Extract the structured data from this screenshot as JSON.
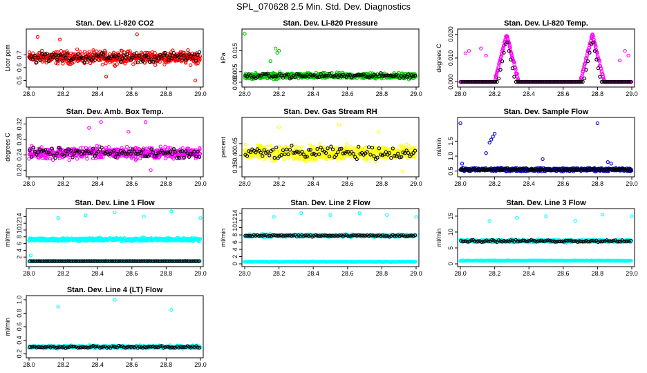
{
  "page_title": "SPL_070628  2.5 Min. Std. Dev. Diagnostics",
  "chart_data": [
    {
      "id": "co2",
      "type": "scatter",
      "title": "Stan. Dev. Li-820 CO2",
      "ylabel": "Licor ppm",
      "xlim": [
        28.0,
        29.0
      ],
      "ylim": [
        0.47,
        0.88
      ],
      "xticks": [
        28.0,
        28.2,
        28.4,
        28.6,
        28.8,
        29.0
      ],
      "xtick_labels": [
        "28.0",
        "28.2",
        "28.4",
        "28.6",
        "28.8",
        "29.0"
      ],
      "yticks": [
        0.5,
        0.6,
        0.7
      ],
      "ytick_labels": [
        "0.5",
        "0.6",
        "0.7"
      ],
      "main_color": "#ff0000",
      "base": 0.68,
      "spread": 0.07,
      "outliers": [
        [
          28.05,
          0.84
        ],
        [
          28.18,
          0.82
        ],
        [
          28.63,
          0.86
        ],
        [
          28.97,
          0.5
        ],
        [
          28.45,
          0.53
        ]
      ]
    },
    {
      "id": "pressure",
      "type": "scatter",
      "title": "Stan. Dev. Li-820 Pressure",
      "ylabel": "kPa",
      "xlim": [
        28.0,
        29.0
      ],
      "ylim": [
        -0.001,
        0.024
      ],
      "xticks": [
        28.0,
        28.2,
        28.4,
        28.6,
        28.8,
        29.0
      ],
      "xtick_labels": [
        "28.0",
        "28.2",
        "28.4",
        "28.6",
        "28.8",
        "29.0"
      ],
      "yticks": [
        0.0,
        0.005,
        0.015
      ],
      "ytick_labels": [
        "0.000",
        "0.005",
        "0.015"
      ],
      "main_color": "#00c800",
      "base": 0.003,
      "spread": 0.002,
      "outliers": [
        [
          28.0,
          0.023
        ],
        [
          28.18,
          0.016
        ],
        [
          28.19,
          0.014
        ],
        [
          28.2,
          0.015
        ],
        [
          28.15,
          0.01
        ]
      ]
    },
    {
      "id": "temp",
      "type": "scatter",
      "title": "Stan. Dev. Li-820 Temp.",
      "ylabel": "degrees C",
      "xlim": [
        28.0,
        29.0
      ],
      "ylim": [
        -0.001,
        0.021
      ],
      "xticks": [
        28.0,
        28.2,
        28.4,
        28.6,
        28.8,
        29.0
      ],
      "xtick_labels": [
        "28.0",
        "28.2",
        "28.4",
        "28.6",
        "28.8",
        "29.0"
      ],
      "yticks": [
        0.0,
        0.01,
        0.02
      ],
      "ytick_labels": [
        "0.000",
        "0.010",
        "0.020"
      ],
      "main_color": "#ff00ff",
      "base": 0.0,
      "spread": 0.0,
      "peaks": [
        [
          28.27,
          0.02
        ],
        [
          28.77,
          0.02
        ]
      ],
      "outliers": [
        [
          28.03,
          0.012
        ],
        [
          28.05,
          0.013
        ],
        [
          28.12,
          0.014
        ],
        [
          28.15,
          0.011
        ],
        [
          28.96,
          0.013
        ],
        [
          28.98,
          0.011
        ],
        [
          28.93,
          0.009
        ]
      ]
    },
    {
      "id": "ambbox",
      "type": "scatter",
      "title": "Stan. Dev. Amb. Box Temp.",
      "ylabel": "degrees C",
      "xlim": [
        28.0,
        29.0
      ],
      "ylim": [
        0.19,
        0.33
      ],
      "xticks": [
        28.0,
        28.2,
        28.4,
        28.6,
        28.8,
        29.0
      ],
      "xtick_labels": [
        "28.0",
        "28.2",
        "28.4",
        "28.6",
        "28.8",
        "29.0"
      ],
      "yticks": [
        0.2,
        0.24,
        0.28,
        0.32
      ],
      "ytick_labels": [
        "0.20",
        "0.24",
        "0.28",
        "0.32"
      ],
      "main_color": "#ff00ff",
      "base": 0.245,
      "spread": 0.022,
      "outliers": [
        [
          28.42,
          0.325
        ],
        [
          28.68,
          0.325
        ],
        [
          28.35,
          0.31
        ],
        [
          28.58,
          0.3
        ],
        [
          28.71,
          0.2
        ]
      ]
    },
    {
      "id": "rh",
      "type": "scatter",
      "title": "Stan. Dev. Gas Stream RH",
      "ylabel": "percent",
      "xlim": [
        28.0,
        29.0
      ],
      "ylim": [
        0.32,
        0.55
      ],
      "xticks": [
        28.0,
        28.2,
        28.4,
        28.6,
        28.8,
        29.0
      ],
      "xtick_labels": [
        "28.0",
        "28.2",
        "28.4",
        "28.6",
        "28.8",
        "29.0"
      ],
      "yticks": [
        0.35,
        0.4,
        0.45
      ],
      "ytick_labels": [
        "0.35",
        "0.40",
        "0.45"
      ],
      "main_color": "#ffff00",
      "base": 0.41,
      "spread": 0.045,
      "outliers": [
        [
          28.2,
          0.52
        ],
        [
          28.55,
          0.53
        ],
        [
          28.78,
          0.5
        ],
        [
          28.92,
          0.33
        ]
      ]
    },
    {
      "id": "sampleflow",
      "type": "scatter",
      "title": "Stan. Dev. Sample Flow",
      "ylabel": "ml/min",
      "xlim": [
        28.0,
        29.0
      ],
      "ylim": [
        0.4,
        2.2
      ],
      "xticks": [
        28.0,
        28.2,
        28.4,
        28.6,
        28.8,
        29.0
      ],
      "xtick_labels": [
        "28.0",
        "28.2",
        "28.4",
        "28.6",
        "28.8",
        "29.0"
      ],
      "yticks": [
        0.5,
        1.0,
        1.5
      ],
      "ytick_labels": [
        "0.5",
        "1.0",
        "1.5"
      ],
      "main_color": "#0000c8",
      "base": 0.55,
      "spread": 0.08,
      "outliers": [
        [
          28.0,
          2.1
        ],
        [
          28.01,
          0.75
        ],
        [
          28.15,
          1.1
        ],
        [
          28.17,
          1.45
        ],
        [
          28.18,
          1.55
        ],
        [
          28.2,
          1.75
        ],
        [
          28.19,
          1.65
        ],
        [
          28.8,
          2.1
        ],
        [
          28.48,
          0.9
        ],
        [
          28.86,
          0.8
        ],
        [
          28.88,
          0.75
        ]
      ]
    },
    {
      "id": "line1",
      "type": "scatter",
      "title": "Stan. Dev. Line 1 Flow",
      "ylabel": "ml/min",
      "xlim": [
        28.0,
        29.0
      ],
      "ylim": [
        0,
        15.5
      ],
      "xticks": [
        28.0,
        28.2,
        28.4,
        28.6,
        28.8,
        29.0
      ],
      "xtick_labels": [
        "28.0",
        "28.2",
        "28.4",
        "28.6",
        "28.8",
        "29.0"
      ],
      "yticks": [
        2,
        4,
        6,
        8,
        10,
        12,
        14
      ],
      "ytick_labels": [
        "2",
        "4",
        "6",
        "8",
        "10",
        "12",
        "14"
      ],
      "main_color": "#00ffff",
      "base": 7.2,
      "spread": 0.7,
      "low_band": 0.8,
      "outliers": [
        [
          28.17,
          13.5
        ],
        [
          28.33,
          14.3
        ],
        [
          28.5,
          15.2
        ],
        [
          28.67,
          14
        ],
        [
          28.83,
          15.5
        ],
        [
          29.0,
          13.5
        ],
        [
          28.01,
          2.5
        ]
      ]
    },
    {
      "id": "line2",
      "type": "scatter",
      "title": "Stan. Dev. Line 2 Flow",
      "ylabel": "ml/min",
      "xlim": [
        28.0,
        29.0
      ],
      "ylim": [
        0,
        14.5
      ],
      "xticks": [
        28.0,
        28.2,
        28.4,
        28.6,
        28.8,
        29.0
      ],
      "xtick_labels": [
        "28.0",
        "28.2",
        "28.4",
        "28.6",
        "28.8",
        "29.0"
      ],
      "yticks": [
        0,
        2,
        4,
        6,
        8,
        10,
        12,
        14
      ],
      "ytick_labels": [
        "0",
        "2",
        "4",
        "6",
        "8",
        "10",
        "12",
        "14"
      ],
      "main_color": "#00ffff",
      "base": 7.8,
      "spread": 0.5,
      "low_band": 0.6,
      "outliers": [
        [
          28.17,
          13
        ],
        [
          28.33,
          14
        ],
        [
          28.5,
          13.5
        ],
        [
          28.67,
          14
        ],
        [
          28.83,
          13.5
        ],
        [
          29.0,
          13
        ]
      ]
    },
    {
      "id": "line3",
      "type": "scatter",
      "title": "Stan. Dev. Line 3 Flow",
      "ylabel": "ml/min",
      "xlim": [
        28.0,
        29.0
      ],
      "ylim": [
        0,
        16.5
      ],
      "xticks": [
        28.0,
        28.2,
        28.4,
        28.6,
        28.8,
        29.0
      ],
      "xtick_labels": [
        "28.0",
        "28.2",
        "28.4",
        "28.6",
        "28.8",
        "29.0"
      ],
      "yticks": [
        0,
        5,
        10,
        15
      ],
      "ytick_labels": [
        "0",
        "5",
        "10",
        "15"
      ],
      "main_color": "#00ffff",
      "base": 7.2,
      "spread": 0.6,
      "low_band": 1.0,
      "outliers": [
        [
          28.17,
          13.5
        ],
        [
          28.33,
          14.5
        ],
        [
          28.5,
          15
        ],
        [
          28.67,
          13.5
        ],
        [
          28.83,
          15.5
        ],
        [
          29.0,
          15
        ]
      ]
    },
    {
      "id": "line4",
      "type": "scatter",
      "title": "Stan. Dev. Line 4 (LT) Flow",
      "ylabel": "ml/min",
      "xlim": [
        28.0,
        29.0
      ],
      "ylim": [
        0.18,
        1.02
      ],
      "xticks": [
        28.0,
        28.2,
        28.4,
        28.6,
        28.8,
        29.0
      ],
      "xtick_labels": [
        "28.0",
        "28.2",
        "28.4",
        "28.6",
        "28.8",
        "29.0"
      ],
      "yticks": [
        0.2,
        0.4,
        0.6,
        0.8,
        1.0
      ],
      "ytick_labels": [
        "0.2",
        "0.4",
        "0.6",
        "0.8",
        "1.0"
      ],
      "main_color": "#00ffff",
      "base": 0.3,
      "spread": 0.03,
      "outliers": [
        [
          28.17,
          0.9
        ],
        [
          28.5,
          1.0
        ],
        [
          28.83,
          0.85
        ]
      ]
    }
  ]
}
